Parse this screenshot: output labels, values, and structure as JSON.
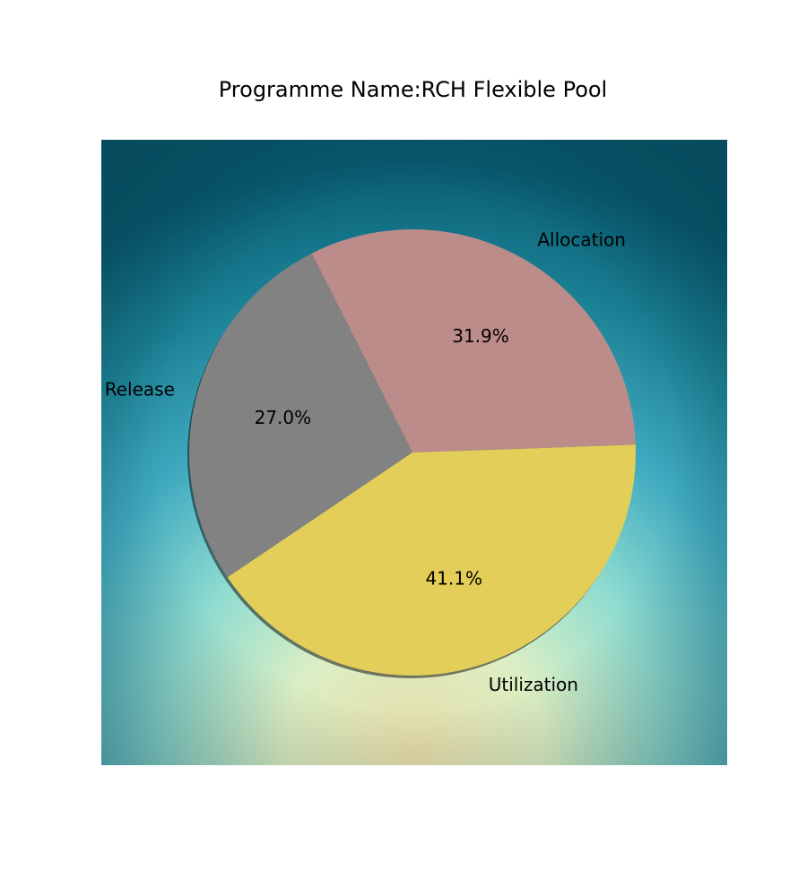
{
  "chart_data": {
    "type": "pie",
    "title": "Programme Name:RCH Flexible Pool",
    "slices": [
      {
        "label": "Allocation",
        "value": 31.9,
        "pct_label": "31.9%",
        "color": "#bc8c8a"
      },
      {
        "label": "Release",
        "value": 27.0,
        "pct_label": "27.0%",
        "color": "#828282"
      },
      {
        "label": "Utilization",
        "value": 41.1,
        "pct_label": "41.1%",
        "color": "#e2ce58"
      }
    ],
    "start_angle_deg": 2,
    "direction": "counterclockwise",
    "shadow": true,
    "background": "radial gradient teal to pale yellow",
    "legend": "none"
  }
}
